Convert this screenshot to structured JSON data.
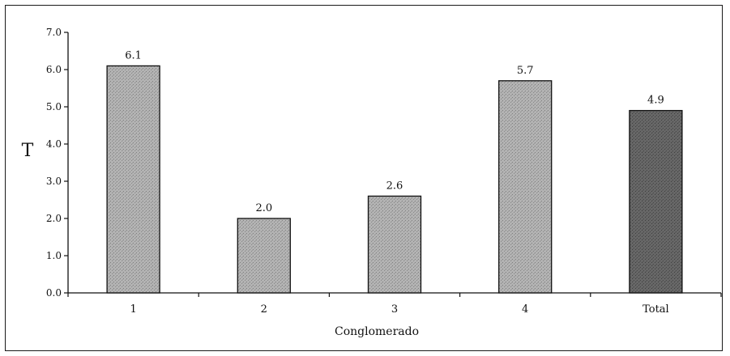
{
  "chart_data": {
    "type": "bar",
    "categories": [
      "1",
      "2",
      "3",
      "4",
      "Total"
    ],
    "values": [
      6.1,
      2.0,
      2.6,
      5.7,
      4.9
    ],
    "data_labels": [
      "6.1",
      "2.0",
      "2.6",
      "5.7",
      "4.9"
    ],
    "title": "",
    "xlabel": "Conglomerado",
    "ylabel": "T",
    "ylim": [
      0,
      7
    ],
    "yticks": [
      0,
      1,
      2,
      3,
      4,
      5,
      6,
      7
    ],
    "ytick_labels": [
      "0.0",
      "1.0",
      "2.0",
      "3.0",
      "4.0",
      "5.0",
      "6.0",
      "7.0"
    ],
    "grid": false,
    "legend": "none",
    "colors": {
      "bar_fill": "#a6a6a6",
      "total_bar_fill": "#5e5e5e",
      "bar_edge": "#111111",
      "axis": "#111111"
    }
  }
}
